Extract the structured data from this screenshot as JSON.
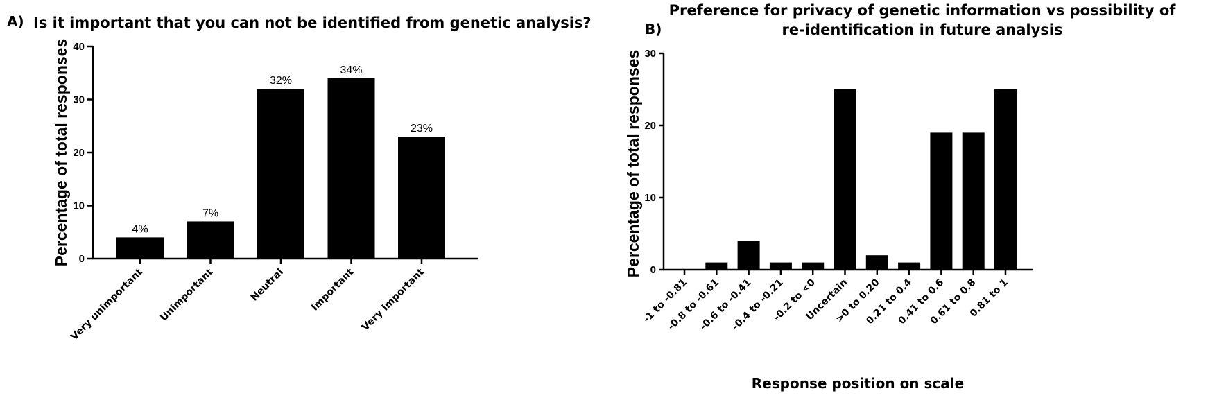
{
  "panels": {
    "a": {
      "label": "A)"
    },
    "b": {
      "label": "B)"
    }
  },
  "chart_data": [
    {
      "type": "bar",
      "title": "Is it important that you can not be identified from genetic analysis?",
      "xlabel": "",
      "ylabel": "Percentage of total responses",
      "categories": [
        "Very unimportant",
        "Unimportant",
        "Neutral",
        "Important",
        "Very Important"
      ],
      "values": [
        4,
        7,
        32,
        34,
        23
      ],
      "data_labels": [
        "4%",
        "7%",
        "32%",
        "34%",
        "23%"
      ],
      "ylim": [
        0,
        40
      ],
      "yticks": [
        0,
        10,
        20,
        30,
        40
      ],
      "grid": false,
      "bar_color": "#000000"
    },
    {
      "type": "bar",
      "title_lines": [
        "Preference for privacy of genetic information vs possibility of",
        "re-identification in future analysis"
      ],
      "xlabel": "Response position on scale",
      "ylabel": "Percentage of total responses",
      "categories": [
        "-1 to -0.81",
        "-0.8 to -0.61",
        "-0.6 to -0.41",
        "-0.4 to -0.21",
        "-0.2 to <0",
        "Uncertain",
        ">0 to 0.20",
        "0.21 to 0.4",
        "0.41 to 0.6",
        "0.61 to 0.8",
        "0.81 to 1"
      ],
      "values": [
        0,
        1,
        4,
        1,
        1,
        25,
        2,
        1,
        19,
        19,
        25
      ],
      "ylim": [
        0,
        30
      ],
      "yticks": [
        0,
        10,
        20,
        30
      ],
      "grid": false,
      "bar_color": "#000000"
    }
  ]
}
